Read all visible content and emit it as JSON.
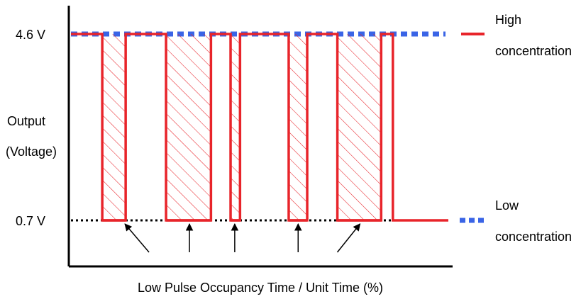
{
  "chart_data": {
    "type": "line",
    "title": "",
    "xlabel": "Low Pulse Occupancy Time / Unit Time (%)",
    "ylabel_lines": [
      "Output",
      "(Voltage)"
    ],
    "y_ticks": [
      {
        "value": 4.6,
        "label": "4.6 V"
      },
      {
        "value": 0.7,
        "label": "0.7 V"
      }
    ],
    "ylim": [
      0.7,
      4.6
    ],
    "reference_lines": [
      {
        "value": 4.6,
        "style": "dotted",
        "color": "#3a64e6"
      },
      {
        "value": 0.7,
        "style": "dotted",
        "color": "#000000"
      }
    ],
    "series": [
      {
        "color": "#e8242a",
        "high_value": 4.6,
        "low_value": 0.7,
        "low_intervals_pct": [
          [
            8.3,
            14.5
          ],
          [
            25.2,
            37.1
          ],
          [
            42.3,
            44.8
          ],
          [
            57.7,
            62.6
          ],
          [
            70.6,
            82.2
          ],
          [
            85.3,
            90.6
          ]
        ],
        "low_interval_fill": "hatched"
      }
    ],
    "legend": {
      "position": "right",
      "items": [
        {
          "lines": [
            "High",
            "concentration"
          ],
          "marker": "solid",
          "color": "#e8242a"
        },
        {
          "lines": [
            "Low",
            "concentration"
          ],
          "marker": "dotted",
          "color": "#3a64e6"
        }
      ]
    },
    "annotations": [
      {
        "type": "arrow",
        "target_pct": 14.3,
        "direction": "from-lower-right"
      },
      {
        "type": "arrow",
        "target_pct": 31.4,
        "direction": "from-below"
      },
      {
        "type": "arrow",
        "target_pct": 43.4,
        "direction": "from-below"
      },
      {
        "type": "arrow",
        "target_pct": 60.2,
        "direction": "from-below"
      },
      {
        "type": "arrow",
        "target_pct": 76.6,
        "direction": "from-lower-left"
      }
    ]
  }
}
